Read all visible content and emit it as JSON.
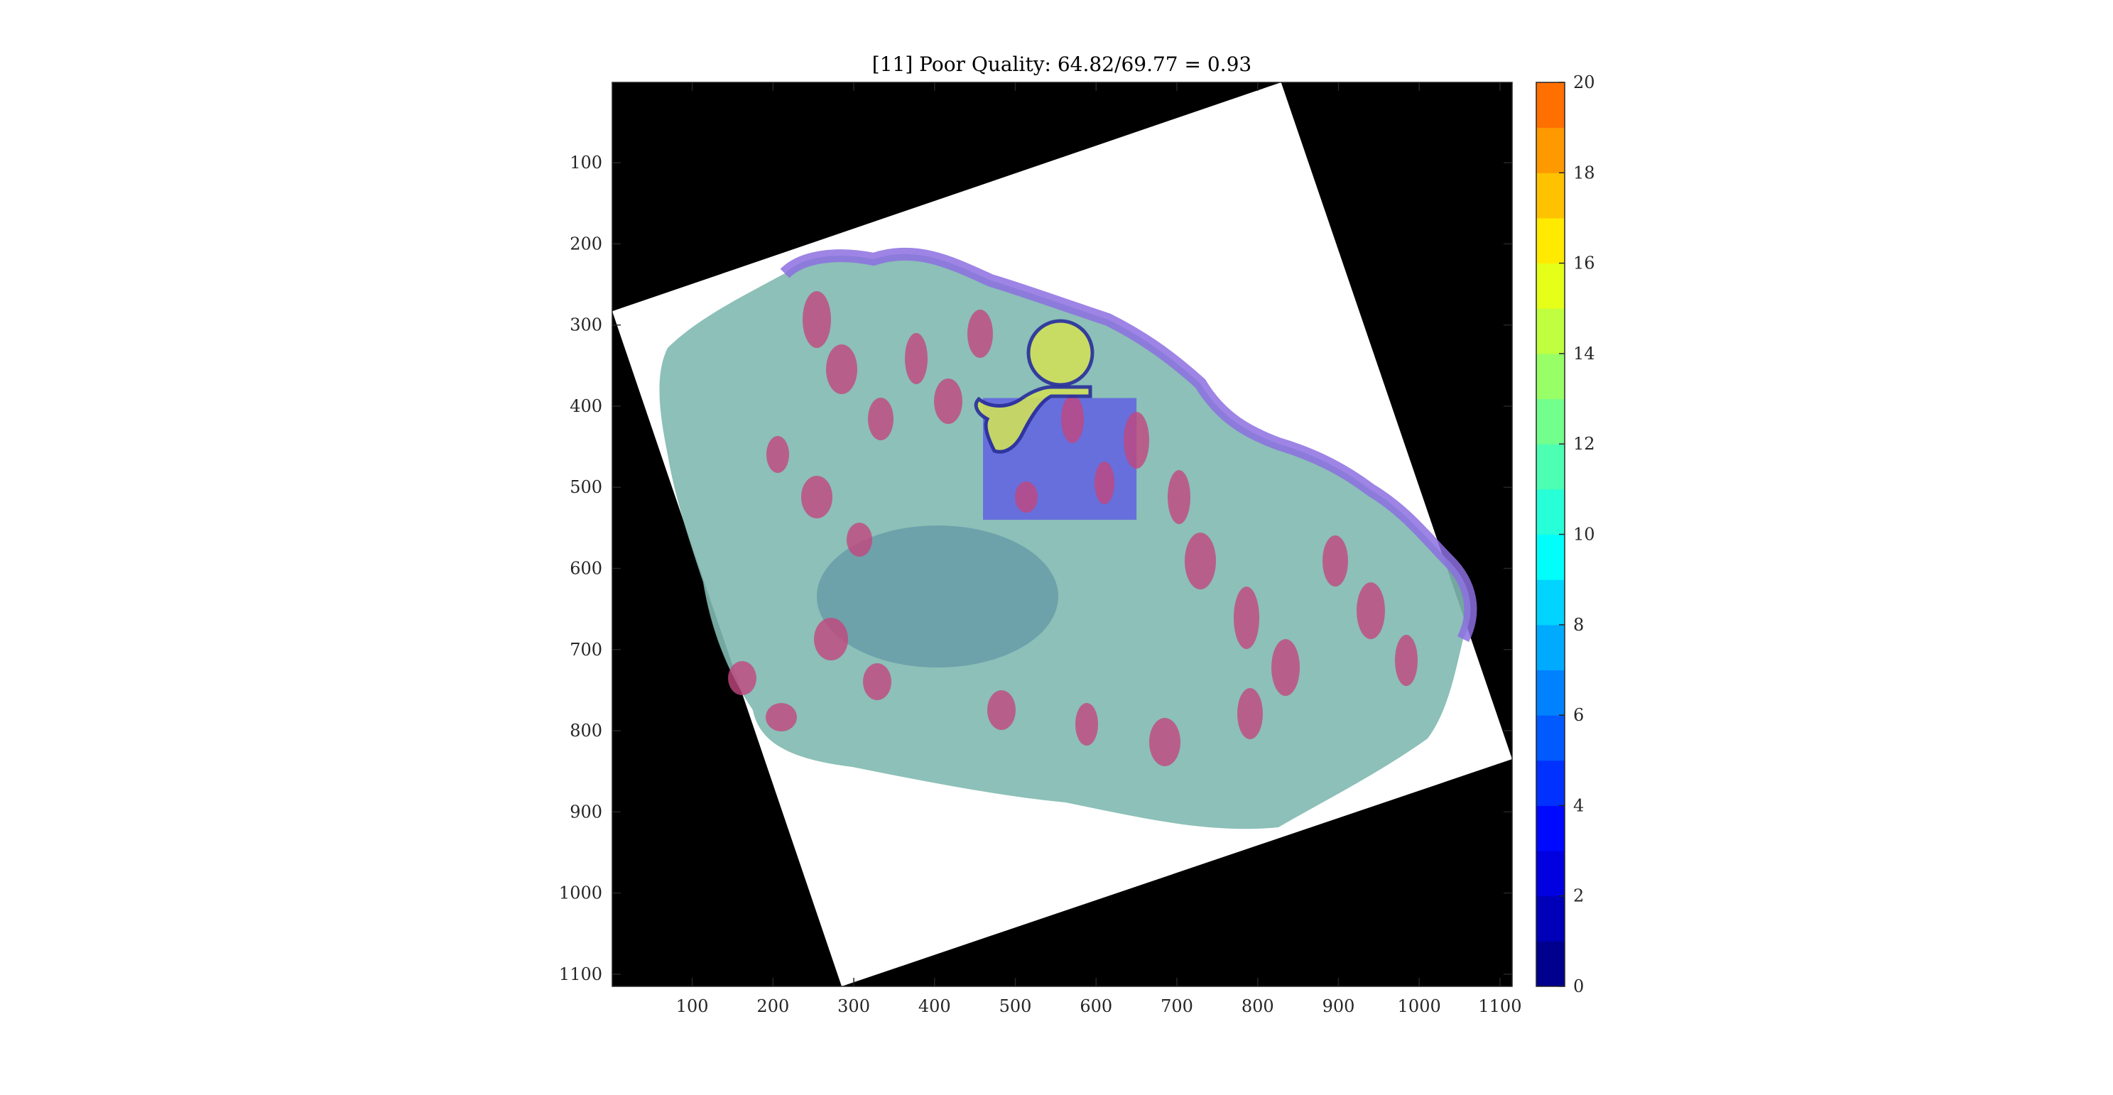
{
  "chart_data": {
    "type": "heatmap",
    "title": "[11] Poor Quality: 64.82/69.77 = 0.93",
    "xlim": [
      1,
      1115
    ],
    "ylim": [
      1115,
      1
    ],
    "x_ticks": [
      100,
      200,
      300,
      400,
      500,
      600,
      700,
      800,
      900,
      1000,
      1100
    ],
    "y_ticks": [
      100,
      200,
      300,
      400,
      500,
      600,
      700,
      800,
      900,
      1000,
      1100
    ],
    "y_direction": "reversed",
    "grid": false,
    "colorbar": {
      "range": [
        0,
        20
      ],
      "ticks": [
        0,
        2,
        4,
        6,
        8,
        10,
        12,
        14,
        16,
        18,
        20
      ],
      "levels": 20,
      "colormap": "jet",
      "colors": [
        "#00008f",
        "#0000b8",
        "#0000e0",
        "#0009ff",
        "#0031ff",
        "#005aff",
        "#0082ff",
        "#00abff",
        "#00d4ff",
        "#00fffb",
        "#26ffd8",
        "#4cffb2",
        "#72ff8c",
        "#98ff66",
        "#bfff40",
        "#e5ff19",
        "#ffea00",
        "#ffc200",
        "#ff9900",
        "#ff7000"
      ]
    },
    "image": {
      "background": "#000000",
      "rotated_field_corners": [
        [
          1,
          283
        ],
        [
          829,
          1
        ],
        [
          1115,
          835
        ],
        [
          285,
          1115
        ]
      ],
      "field_color": "#ffffff",
      "tissue_color": "#7fb9b0",
      "gland_color": "#c2467e",
      "epithelium_color": "#8c6fe0",
      "annotation_region": {
        "x": [
          460,
          650
        ],
        "y": [
          390,
          540
        ],
        "color": "#5b54e8"
      },
      "highlight_color": "#cfe05a",
      "highlight_outline": "#2a2f9a"
    }
  }
}
